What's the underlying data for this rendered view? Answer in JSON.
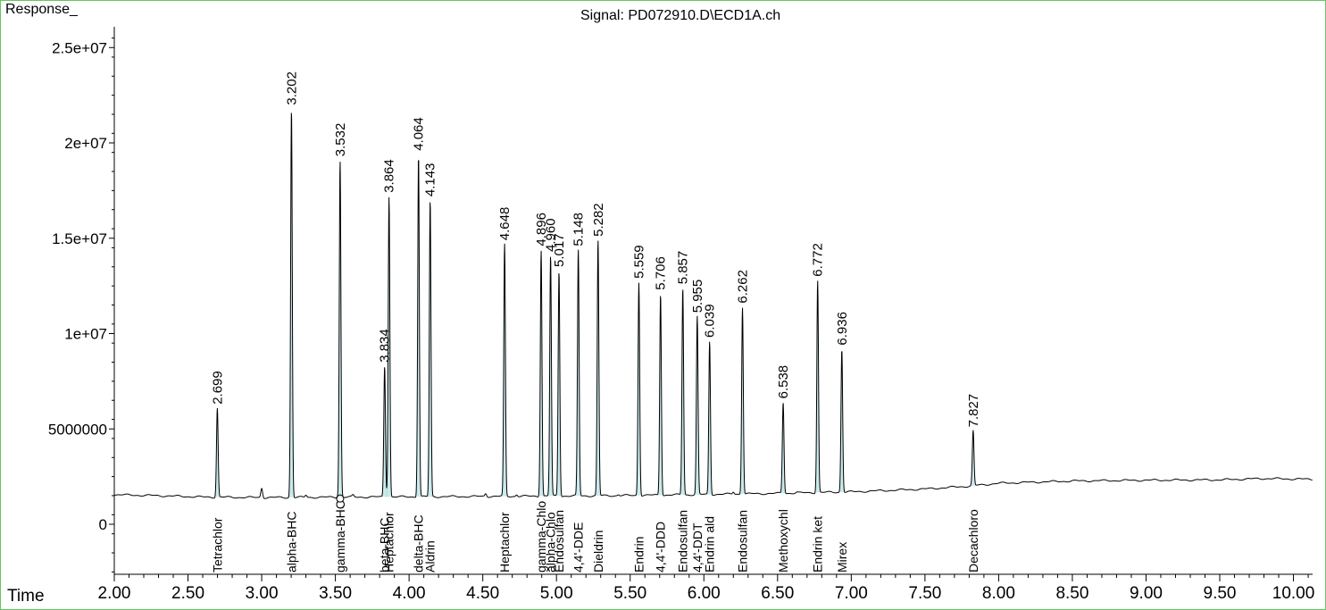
{
  "chart_data": {
    "type": "line",
    "title": "Signal: PD072910.D\\ECD1A.ch",
    "ylabel": "Response_",
    "xlabel": "Time",
    "xlim": [
      2.0,
      10.13
    ],
    "ylim": [
      -2700000,
      27000000
    ],
    "x_ticks": [
      "2.00",
      "2.50",
      "3.00",
      "3.50",
      "4.00",
      "4.50",
      "5.00",
      "5.50",
      "6.00",
      "6.50",
      "7.00",
      "7.50",
      "8.00",
      "8.50",
      "9.00",
      "9.50",
      "10.00"
    ],
    "y_ticks": [
      {
        "value": 25000000,
        "label": "2.5e+07"
      },
      {
        "value": 20000000,
        "label": "2e+07"
      },
      {
        "value": 15000000,
        "label": "1.5e+07"
      },
      {
        "value": 10000000,
        "label": "1e+07"
      },
      {
        "value": 5000000,
        "label": "5000000"
      },
      {
        "value": 0,
        "label": "0"
      }
    ],
    "baseline": [
      [
        2.0,
        1550000
      ],
      [
        2.3,
        1500000
      ],
      [
        2.6,
        1430000
      ],
      [
        3.0,
        1400000
      ],
      [
        3.5,
        1420000
      ],
      [
        4.0,
        1440000
      ],
      [
        4.5,
        1460000
      ],
      [
        5.0,
        1480000
      ],
      [
        5.5,
        1510000
      ],
      [
        6.0,
        1560000
      ],
      [
        6.5,
        1620000
      ],
      [
        7.0,
        1700000
      ],
      [
        7.5,
        1850000
      ],
      [
        7.8,
        2000000
      ],
      [
        8.0,
        2150000
      ],
      [
        8.5,
        2270000
      ],
      [
        9.0,
        2310000
      ],
      [
        9.5,
        2330000
      ],
      [
        9.8,
        2400000
      ],
      [
        10.13,
        2360000
      ]
    ],
    "peaks": [
      {
        "rt": 2.699,
        "height": 6100000,
        "compound": "Tetrachlor"
      },
      {
        "rt": 3.202,
        "height": 21800000,
        "compound": "alpha-BHC"
      },
      {
        "rt": 3.532,
        "height": 19100000,
        "compound": "gamma-BHC"
      },
      {
        "rt": 3.834,
        "height": 8300000,
        "compound": "beta-BHC"
      },
      {
        "rt": 3.864,
        "height": 17200000,
        "compound": "Heptachlor"
      },
      {
        "rt": 4.064,
        "height": 19400000,
        "compound": "delta-BHC"
      },
      {
        "rt": 4.143,
        "height": 17000000,
        "compound": "Aldrin"
      },
      {
        "rt": 4.648,
        "height": 14700000,
        "compound": "Heptachlor"
      },
      {
        "rt": 4.896,
        "height": 14400000,
        "compound": "gamma-Chlo"
      },
      {
        "rt": 4.96,
        "height": 14100000,
        "compound": "alpha-Chlo"
      },
      {
        "rt": 5.017,
        "height": 13300000,
        "compound": "Endosulfan"
      },
      {
        "rt": 5.148,
        "height": 14400000,
        "compound": "4,4'-DDE"
      },
      {
        "rt": 5.282,
        "height": 14900000,
        "compound": "Dieldrin"
      },
      {
        "rt": 5.559,
        "height": 12700000,
        "compound": "Endrin"
      },
      {
        "rt": 5.706,
        "height": 12100000,
        "compound": "4,4'-DDD"
      },
      {
        "rt": 5.857,
        "height": 12400000,
        "compound": "Endosulfan"
      },
      {
        "rt": 5.955,
        "height": 10900000,
        "compound": "4,4'-DDT"
      },
      {
        "rt": 6.039,
        "height": 9600000,
        "compound": "Endrin ald"
      },
      {
        "rt": 6.262,
        "height": 11400000,
        "compound": "Endosulfan"
      },
      {
        "rt": 6.538,
        "height": 6400000,
        "compound": "Methoxychl"
      },
      {
        "rt": 6.772,
        "height": 12800000,
        "compound": "Endrin ket"
      },
      {
        "rt": 6.936,
        "height": 9200000,
        "compound": "Mirex"
      },
      {
        "rt": 7.827,
        "height": 4900000,
        "compound": "Decachloro"
      }
    ],
    "peak_labels": [
      "2.699",
      "3.202",
      "3.532",
      "3.834",
      "3.864",
      "4.064",
      "4.143",
      "4.648",
      "4.896",
      "4.960",
      "5.017",
      "5.148",
      "5.282",
      "5.559",
      "5.706",
      "5.857",
      "5.955",
      "6.039",
      "6.262",
      "6.538",
      "6.772",
      "6.936",
      "7.827"
    ],
    "minor_peaks": [
      [
        3.0,
        1900000
      ],
      [
        3.3,
        1530000
      ],
      [
        3.62,
        1520000
      ],
      [
        4.52,
        1620000
      ],
      [
        4.73,
        1560000
      ],
      [
        5.42,
        1560000
      ],
      [
        6.63,
        1680000
      ],
      [
        6.2,
        1700000
      ]
    ],
    "colors": {
      "trace": "#000000",
      "frame": "#5fc85f",
      "integration": "#a8dce0"
    },
    "grid": false
  }
}
